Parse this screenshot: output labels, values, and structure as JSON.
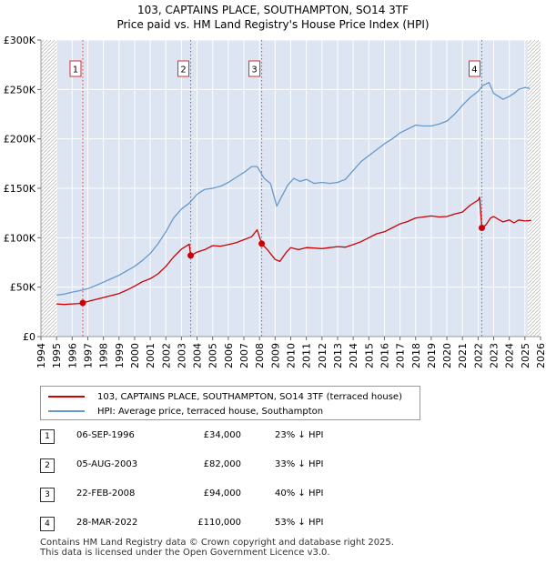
{
  "title_line1": "103, CAPTAINS PLACE, SOUTHAMPTON, SO14 3TF",
  "title_line2": "Price paid vs. HM Land Registry's House Price Index (HPI)",
  "colors": {
    "property": "#cc0000",
    "hpi": "#6699cc",
    "shade": "#dde4f2",
    "grid": "#dddddd"
  },
  "chart_data": {
    "type": "line",
    "xlim": [
      1994.0,
      2026.0
    ],
    "ylim": [
      0,
      300000
    ],
    "y_ticks": [
      0,
      50000,
      100000,
      150000,
      200000,
      250000,
      300000
    ],
    "y_tick_labels": [
      "£0",
      "£50K",
      "£100K",
      "£150K",
      "£200K",
      "£250K",
      "£300K"
    ],
    "x_ticks": [
      1994,
      1995,
      1996,
      1997,
      1998,
      1999,
      2000,
      2001,
      2002,
      2003,
      2004,
      2005,
      2006,
      2007,
      2008,
      2009,
      2010,
      2011,
      2012,
      2013,
      2014,
      2015,
      2016,
      2017,
      2018,
      2019,
      2020,
      2021,
      2022,
      2023,
      2024,
      2025,
      2026
    ],
    "hatched_ranges": [
      [
        1994.0,
        1995.0
      ],
      [
        2025.17,
        2026.0
      ]
    ],
    "series": [
      {
        "name": "103, CAPTAINS PLACE, SOUTHAMPTON, SO14 3TF (terraced house)",
        "color": "#cc0000",
        "x": [
          1995.0,
          1995.5,
          1996.0,
          1996.5,
          1996.68,
          1997.0,
          1997.5,
          1998.0,
          1998.5,
          1999.0,
          1999.5,
          2000.0,
          2000.5,
          2001.0,
          2001.5,
          2002.0,
          2002.5,
          2003.0,
          2003.5,
          2003.59,
          2004.0,
          2004.5,
          2005.0,
          2005.5,
          2006.0,
          2006.5,
          2007.0,
          2007.5,
          2007.85,
          2008.14,
          2008.5,
          2009.0,
          2009.3,
          2009.7,
          2010.0,
          2010.5,
          2011.0,
          2011.5,
          2012.0,
          2012.5,
          2013.0,
          2013.5,
          2014.0,
          2014.5,
          2015.0,
          2015.5,
          2016.0,
          2016.5,
          2017.0,
          2017.5,
          2018.0,
          2018.5,
          2019.0,
          2019.5,
          2020.0,
          2020.5,
          2021.0,
          2021.5,
          2022.0,
          2022.1,
          2022.24,
          2022.5,
          2022.8,
          2023.0,
          2023.3,
          2023.6,
          2024.0,
          2024.3,
          2024.6,
          2025.0,
          2025.4
        ],
        "y": [
          33000,
          32500,
          33000,
          33500,
          34000,
          35500,
          37500,
          39500,
          41500,
          43500,
          47000,
          51000,
          55500,
          58500,
          63500,
          71000,
          80500,
          88500,
          93500,
          82000,
          85500,
          88000,
          92000,
          91500,
          93000,
          95000,
          98000,
          101000,
          108000,
          94000,
          88000,
          78000,
          76000,
          85000,
          90000,
          88000,
          90000,
          89500,
          89000,
          90000,
          91000,
          90500,
          93000,
          96000,
          100000,
          104000,
          106000,
          110000,
          114000,
          116500,
          120000,
          121000,
          122000,
          121000,
          121500,
          124000,
          126000,
          133000,
          138000,
          141000,
          110000,
          113000,
          120000,
          121500,
          118500,
          116000,
          118000,
          115000,
          118000,
          117000,
          117500
        ]
      },
      {
        "name": "HPI: Average price, terraced house, Southampton",
        "color": "#6699cc",
        "x": [
          1995.0,
          1995.5,
          1996.0,
          1996.5,
          1997.0,
          1997.5,
          1998.0,
          1998.5,
          1999.0,
          1999.5,
          2000.0,
          2000.5,
          2001.0,
          2001.5,
          2002.0,
          2002.5,
          2003.0,
          2003.5,
          2004.0,
          2004.5,
          2005.0,
          2005.5,
          2006.0,
          2006.5,
          2007.0,
          2007.5,
          2007.85,
          2008.3,
          2008.7,
          2009.1,
          2009.4,
          2009.8,
          2010.2,
          2010.6,
          2011.0,
          2011.5,
          2012.0,
          2012.5,
          2013.0,
          2013.5,
          2014.0,
          2014.5,
          2015.0,
          2015.5,
          2016.0,
          2016.5,
          2017.0,
          2017.5,
          2018.0,
          2018.5,
          2019.0,
          2019.5,
          2020.0,
          2020.5,
          2021.0,
          2021.5,
          2022.0,
          2022.3,
          2022.7,
          2023.0,
          2023.3,
          2023.6,
          2024.0,
          2024.3,
          2024.6,
          2025.0,
          2025.3
        ],
        "y": [
          42000,
          43000,
          45000,
          46500,
          48500,
          51500,
          55000,
          58500,
          62000,
          66500,
          71000,
          77000,
          84000,
          94000,
          106000,
          120000,
          129000,
          135000,
          144000,
          149000,
          150000,
          152000,
          156000,
          161000,
          166000,
          172000,
          172000,
          160000,
          155000,
          132000,
          141000,
          153000,
          160000,
          157000,
          159000,
          155000,
          156000,
          155000,
          156000,
          159000,
          168000,
          177000,
          183000,
          189000,
          195000,
          200000,
          206000,
          210000,
          214000,
          213000,
          213000,
          215000,
          218000,
          225000,
          234000,
          242000,
          248000,
          254000,
          257000,
          246000,
          243000,
          240000,
          243000,
          246000,
          250000,
          252000,
          251000
        ]
      }
    ],
    "sales": [
      {
        "label": "1",
        "date": 1996.68,
        "price": 34000
      },
      {
        "label": "2",
        "date": 2003.59,
        "price": 82000
      },
      {
        "label": "3",
        "date": 2008.14,
        "price": 94000
      },
      {
        "label": "4",
        "date": 2022.24,
        "price": 110000
      }
    ]
  },
  "legend": {
    "property_label": "103, CAPTAINS PLACE, SOUTHAMPTON, SO14 3TF (terraced house)",
    "hpi_label": "HPI: Average price, terraced house, Southampton"
  },
  "sales_table": [
    {
      "num": "1",
      "date": "06-SEP-1996",
      "price": "£34,000",
      "hpi": "23% ↓ HPI"
    },
    {
      "num": "2",
      "date": "05-AUG-2003",
      "price": "£82,000",
      "hpi": "33% ↓ HPI"
    },
    {
      "num": "3",
      "date": "22-FEB-2008",
      "price": "£94,000",
      "hpi": "40% ↓ HPI"
    },
    {
      "num": "4",
      "date": "28-MAR-2022",
      "price": "£110,000",
      "hpi": "53% ↓ HPI"
    }
  ],
  "footer": {
    "line1": "Contains HM Land Registry data © Crown copyright and database right 2025.",
    "line2": "This data is licensed under the Open Government Licence v3.0."
  }
}
